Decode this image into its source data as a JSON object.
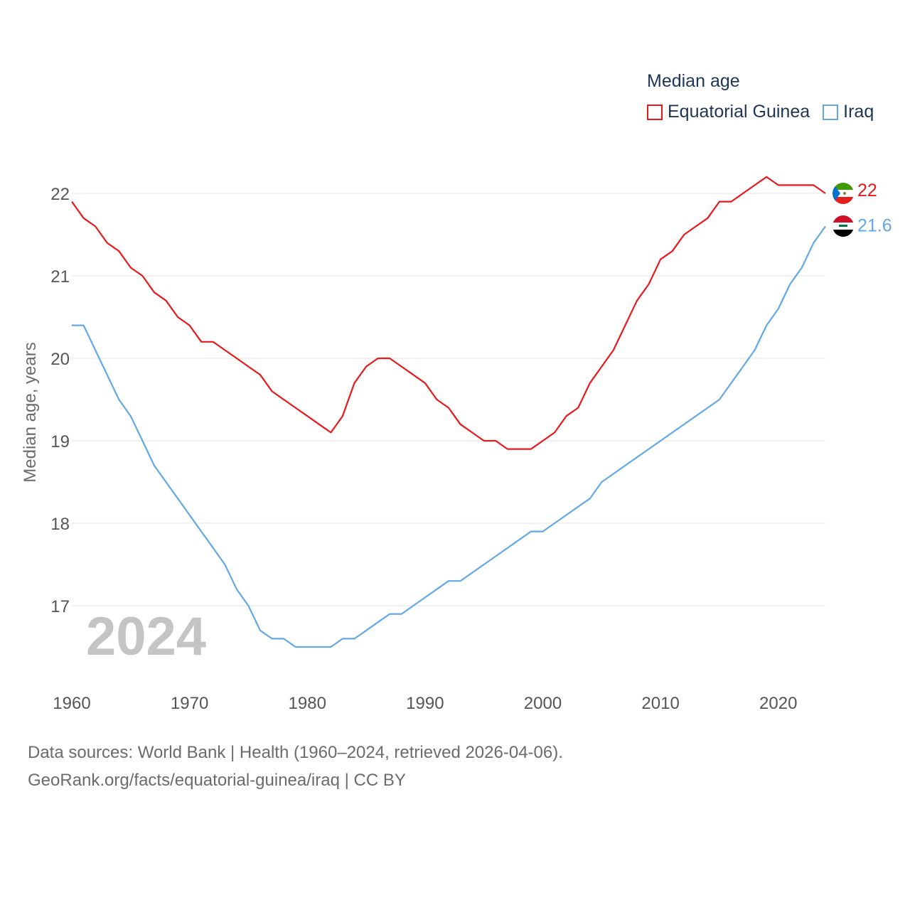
{
  "legend": {
    "title": "Median age",
    "items": [
      {
        "label": "Equatorial Guinea",
        "color": "#e8191c"
      },
      {
        "label": "Iraq",
        "color": "#62a8e8"
      }
    ]
  },
  "year_label": "2024",
  "source": {
    "line1": "Data sources: World Bank | Health (1960–2024, retrieved 2026-04-06).",
    "line2": "GeoRank.org/facts/equatorial-guinea/iraq | CC BY"
  },
  "chart_data": {
    "type": "line",
    "title": "Median age",
    "xlabel": "",
    "ylabel": "Median age, years",
    "xlim": [
      1960,
      2024
    ],
    "ylim": [
      16.0,
      22.5
    ],
    "x_ticks": [
      1960,
      1970,
      1980,
      1990,
      2000,
      2010,
      2020
    ],
    "y_ticks": [
      17,
      18,
      19,
      20,
      21,
      22
    ],
    "grid": true,
    "legend_position": "top-right",
    "x": [
      1960,
      1961,
      1962,
      1963,
      1964,
      1965,
      1966,
      1967,
      1968,
      1969,
      1970,
      1971,
      1972,
      1973,
      1974,
      1975,
      1976,
      1977,
      1978,
      1979,
      1980,
      1981,
      1982,
      1983,
      1984,
      1985,
      1986,
      1987,
      1988,
      1989,
      1990,
      1991,
      1992,
      1993,
      1994,
      1995,
      1996,
      1997,
      1998,
      1999,
      2000,
      2001,
      2002,
      2003,
      2004,
      2005,
      2006,
      2007,
      2008,
      2009,
      2010,
      2011,
      2012,
      2013,
      2014,
      2015,
      2016,
      2017,
      2018,
      2019,
      2020,
      2021,
      2022,
      2023,
      2024
    ],
    "series": [
      {
        "name": "Equatorial Guinea",
        "color": "#e8191c",
        "end_label": "22",
        "values": [
          21.9,
          21.7,
          21.6,
          21.4,
          21.3,
          21.1,
          21.0,
          20.8,
          20.7,
          20.5,
          20.4,
          20.2,
          20.2,
          20.1,
          20.0,
          19.9,
          19.8,
          19.6,
          19.5,
          19.4,
          19.3,
          19.2,
          19.1,
          19.3,
          19.7,
          19.9,
          20.0,
          20.0,
          19.9,
          19.8,
          19.7,
          19.5,
          19.4,
          19.2,
          19.1,
          19.0,
          19.0,
          18.9,
          18.9,
          18.9,
          19.0,
          19.1,
          19.3,
          19.4,
          19.7,
          19.9,
          20.1,
          20.4,
          20.7,
          20.9,
          21.2,
          21.3,
          21.5,
          21.6,
          21.7,
          21.9,
          21.9,
          22.0,
          22.1,
          22.2,
          22.1,
          22.1,
          22.1,
          22.1,
          22.0
        ]
      },
      {
        "name": "Iraq",
        "color": "#62a8e8",
        "end_label": "21.6",
        "values": [
          20.4,
          20.4,
          20.1,
          19.8,
          19.5,
          19.3,
          19.0,
          18.7,
          18.5,
          18.3,
          18.1,
          17.9,
          17.7,
          17.5,
          17.2,
          17.0,
          16.7,
          16.6,
          16.6,
          16.5,
          16.5,
          16.5,
          16.5,
          16.6,
          16.6,
          16.7,
          16.8,
          16.9,
          16.9,
          17.0,
          17.1,
          17.2,
          17.3,
          17.3,
          17.4,
          17.5,
          17.6,
          17.7,
          17.8,
          17.9,
          17.9,
          18.0,
          18.1,
          18.2,
          18.3,
          18.5,
          18.6,
          18.7,
          18.8,
          18.9,
          19.0,
          19.1,
          19.2,
          19.3,
          19.4,
          19.5,
          19.7,
          19.9,
          20.1,
          20.4,
          20.6,
          20.9,
          21.1,
          21.4,
          21.6
        ]
      }
    ]
  }
}
